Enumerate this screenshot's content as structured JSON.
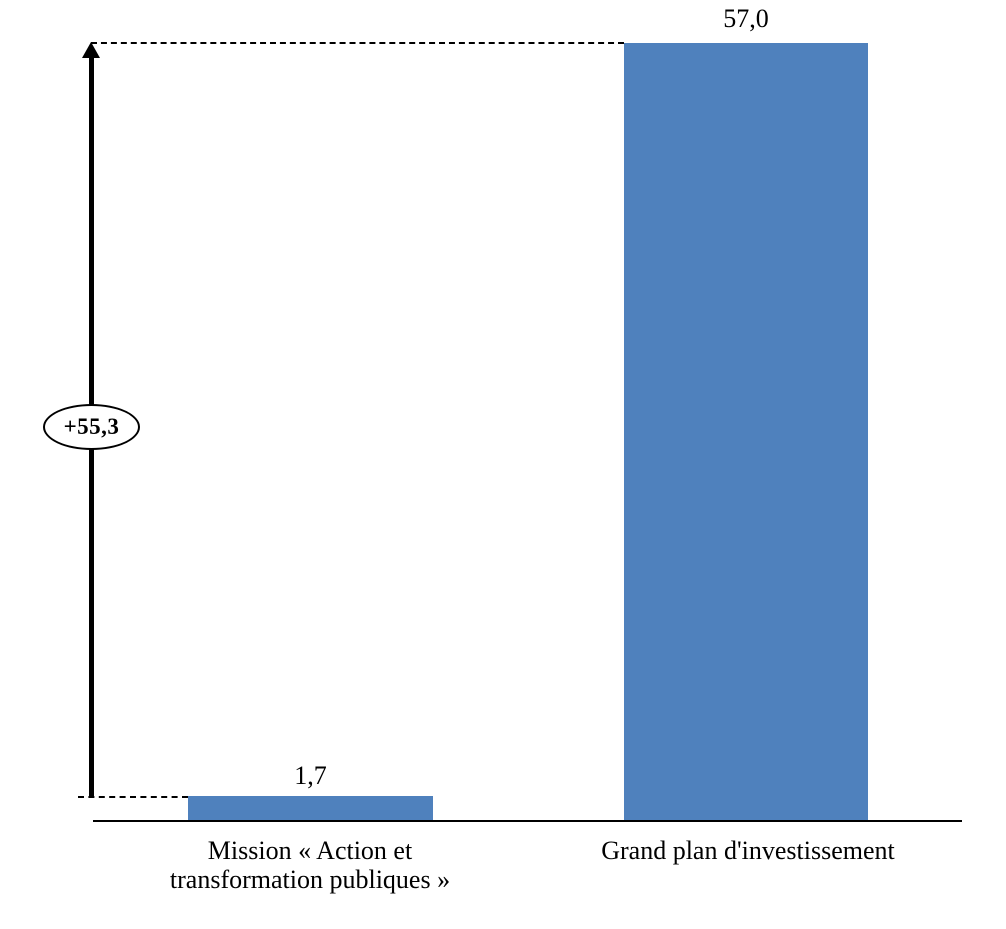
{
  "chart_data": {
    "type": "bar",
    "categories": [
      "Mission « Action et transformation publiques »",
      "Grand plan d'investissement"
    ],
    "categories_display": [
      "Mission « Action et\ntransformation publiques »",
      "Grand plan d'investissement"
    ],
    "values": [
      1.7,
      57.0
    ],
    "value_labels": [
      "1,7",
      "57,0"
    ],
    "annotation": "+55,3",
    "title": "",
    "xlabel": "",
    "ylabel": "",
    "ylim": [
      0,
      57
    ],
    "grid": false,
    "legend": false,
    "bar_color": "#4f81bd",
    "axis_color": "#000000",
    "annotation_style": "ellipse-with-vertical-arrow",
    "guide_lines": "dashed-horizontal-at-bar-tops"
  }
}
